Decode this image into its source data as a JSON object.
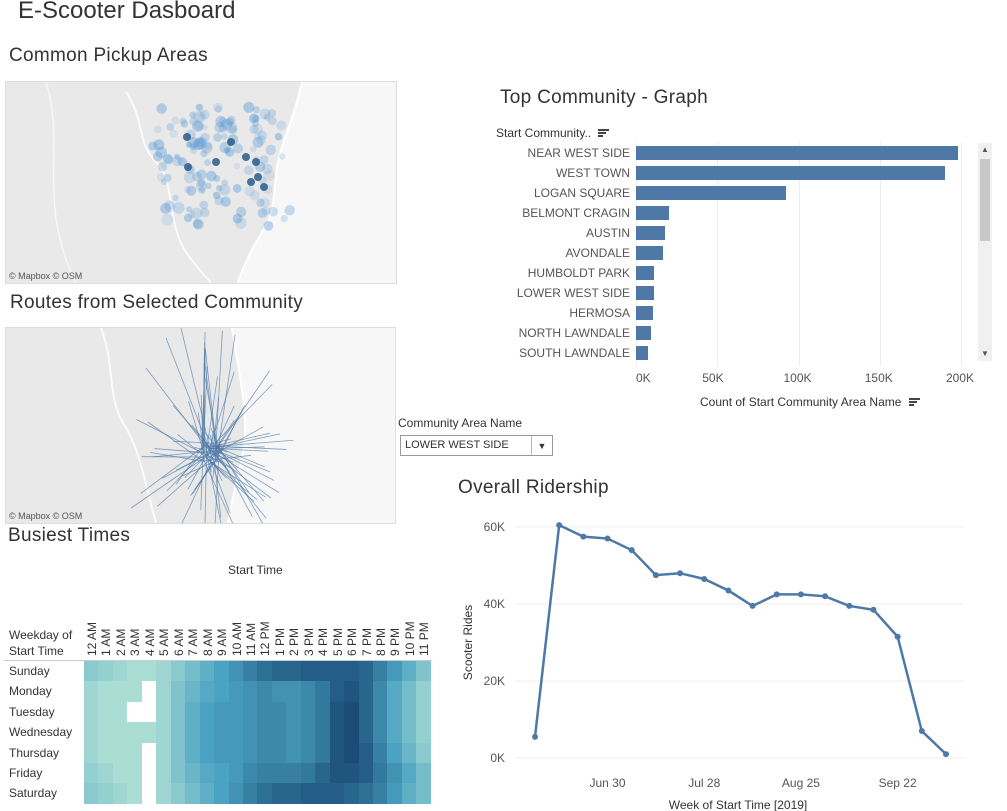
{
  "dashboard": {
    "title": "E-Scooter Dasboard"
  },
  "pickup_map": {
    "title": "Common Pickup Areas",
    "attribution": "© Mapbox © OSM"
  },
  "routes_map": {
    "title": "Routes from Selected Community",
    "attribution": "© Mapbox © OSM"
  },
  "community_filter": {
    "label": "Community Area Name",
    "value": "LOWER WEST SIDE"
  },
  "top_community": {
    "title": "Top Community - Graph",
    "row_header": "Start Community..",
    "chart_data": {
      "type": "bar",
      "orientation": "horizontal",
      "categories": [
        "NEAR WEST SIDE",
        "WEST TOWN",
        "LOGAN SQUARE",
        "BELMONT CRAGIN",
        "AUSTIN",
        "AVONDALE",
        "HUMBOLDT PARK",
        "LOWER WEST SIDE",
        "HERMOSA",
        "NORTH LAWNDALE",
        "SOUTH LAWNDALE"
      ],
      "values": [
        198000,
        190000,
        92000,
        20000,
        18000,
        16500,
        11000,
        11000,
        10500,
        9500,
        7500
      ],
      "xlabel": "Count of Start Community Area Name",
      "xlim": [
        0,
        200000
      ],
      "ticks": [
        0,
        50000,
        100000,
        150000,
        200000
      ],
      "tick_labels": [
        "0K",
        "50K",
        "100K",
        "150K",
        "200K"
      ],
      "color": "#4e79a7"
    }
  },
  "ridership": {
    "title": "Overall Ridership",
    "chart_data": {
      "type": "line",
      "x": [
        "2019-06-09",
        "2019-06-16",
        "2019-06-23",
        "2019-06-30",
        "2019-07-07",
        "2019-07-14",
        "2019-07-21",
        "2019-07-28",
        "2019-08-04",
        "2019-08-11",
        "2019-08-18",
        "2019-08-25",
        "2019-09-01",
        "2019-09-08",
        "2019-09-15",
        "2019-09-22",
        "2019-09-29",
        "2019-10-06"
      ],
      "values": [
        5500,
        60500,
        57500,
        57000,
        54000,
        47500,
        48000,
        46500,
        43500,
        39500,
        42500,
        42500,
        42000,
        39500,
        38500,
        31500,
        7000,
        1000
      ],
      "xlabel": "Week of Start Time [2019]",
      "ylabel": "Scooter Rides",
      "ylim": [
        0,
        60000
      ],
      "yticks": [
        0,
        20000,
        40000,
        60000
      ],
      "ytick_labels": [
        "0K",
        "20K",
        "40K",
        "60K"
      ],
      "xtick_labels": [
        "Jun 30",
        "Jul 28",
        "Aug 25",
        "Sep 22"
      ],
      "color": "#4e79a7",
      "grid": true
    }
  },
  "busiest_times": {
    "title": "Busiest Times",
    "col_header": "Start Time",
    "row_header_line1": "Weekday of",
    "row_header_line2": "Start Time",
    "chart_data": {
      "type": "heatmap",
      "columns": [
        "12 AM",
        "1 AM",
        "2 AM",
        "3 AM",
        "4 AM",
        "5 AM",
        "6 AM",
        "7 AM",
        "8 AM",
        "9 AM",
        "10 AM",
        "11 AM",
        "12 PM",
        "1 PM",
        "2 PM",
        "3 PM",
        "4 PM",
        "5 PM",
        "6 PM",
        "7 PM",
        "8 PM",
        "9 PM",
        "10 PM",
        "11 PM"
      ],
      "rows": [
        "Sunday",
        "Monday",
        "Tuesday",
        "Wednesday",
        "Thursday",
        "Friday",
        "Saturday"
      ],
      "values": [
        [
          0.2,
          0.15,
          0.1,
          0.05,
          0.05,
          0.1,
          0.2,
          0.3,
          0.4,
          0.5,
          0.6,
          0.7,
          0.8,
          0.85,
          0.85,
          0.9,
          0.9,
          0.9,
          0.9,
          0.85,
          0.7,
          0.55,
          0.4,
          0.25
        ],
        [
          0.1,
          0.05,
          0.05,
          0.05,
          null,
          0.1,
          0.25,
          0.35,
          0.45,
          0.5,
          0.55,
          0.6,
          0.65,
          0.6,
          0.6,
          0.65,
          0.75,
          0.9,
          0.95,
          0.85,
          0.65,
          0.45,
          0.3,
          0.15
        ],
        [
          0.1,
          0.05,
          0.05,
          null,
          null,
          0.1,
          0.25,
          0.4,
          0.5,
          0.55,
          0.55,
          0.6,
          0.65,
          0.65,
          0.6,
          0.65,
          0.75,
          0.95,
          1.0,
          0.85,
          0.65,
          0.45,
          0.3,
          0.15
        ],
        [
          0.1,
          0.05,
          0.05,
          0.05,
          0.05,
          0.1,
          0.25,
          0.4,
          0.5,
          0.55,
          0.55,
          0.6,
          0.65,
          0.65,
          0.6,
          0.65,
          0.75,
          0.95,
          1.0,
          0.85,
          0.65,
          0.45,
          0.3,
          0.15
        ],
        [
          0.1,
          0.05,
          0.05,
          0.05,
          null,
          0.1,
          0.25,
          0.4,
          0.5,
          0.55,
          0.55,
          0.6,
          0.65,
          0.65,
          0.6,
          0.65,
          0.75,
          0.95,
          1.0,
          0.9,
          0.7,
          0.5,
          0.35,
          0.2
        ],
        [
          0.15,
          0.1,
          0.05,
          0.05,
          null,
          0.1,
          0.25,
          0.35,
          0.45,
          0.5,
          0.55,
          0.65,
          0.7,
          0.7,
          0.7,
          0.75,
          0.85,
          0.95,
          0.95,
          0.9,
          0.75,
          0.6,
          0.45,
          0.3
        ],
        [
          0.2,
          0.15,
          0.1,
          0.05,
          null,
          0.1,
          0.2,
          0.3,
          0.4,
          0.5,
          0.6,
          0.7,
          0.8,
          0.85,
          0.85,
          0.9,
          0.9,
          0.9,
          0.85,
          0.8,
          0.7,
          0.55,
          0.4,
          0.3
        ]
      ],
      "color_low": "#b5e3d6",
      "color_high": "#1b4c78"
    }
  }
}
